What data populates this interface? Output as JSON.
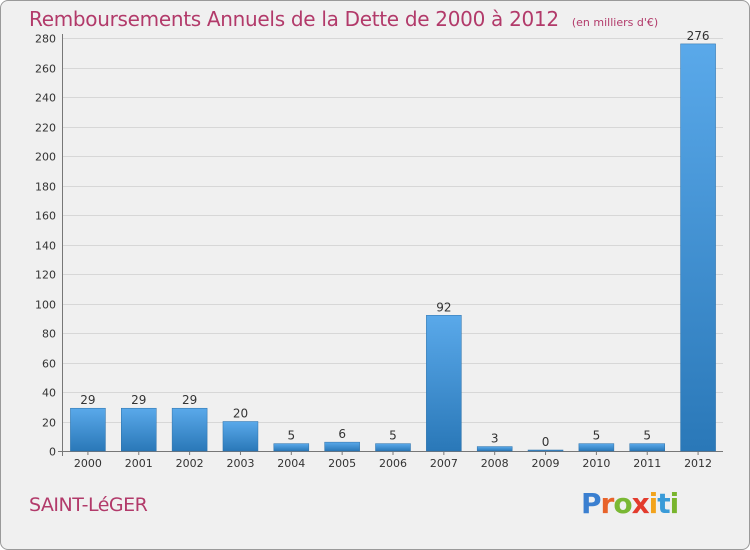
{
  "header": {
    "title": "Remboursements Annuels de la Dette de 2000 à 2012",
    "subtitle": "(en milliers d'€)"
  },
  "footer": {
    "commune": "SAINT-LéGER",
    "logo_letters": [
      "P",
      "r",
      "o",
      "x",
      "i",
      "t",
      "i"
    ],
    "logo_colors": [
      "#3a7fd0",
      "#e8632a",
      "#7ab834",
      "#e33b2d",
      "#f2a31c",
      "#3a9bd8",
      "#79b52d"
    ]
  },
  "colors": {
    "bar_top": "#5aa9ea",
    "bar_bottom": "#2a78b8",
    "accent": "#b23a6a",
    "grid": "#d7d7d7"
  },
  "chart_data": {
    "type": "bar",
    "categories": [
      "2000",
      "2001",
      "2002",
      "2003",
      "2004",
      "2005",
      "2006",
      "2007",
      "2008",
      "2009",
      "2010",
      "2011",
      "2012"
    ],
    "values": [
      29,
      29,
      29,
      20,
      5,
      6,
      5,
      92,
      3,
      0,
      5,
      5,
      276
    ],
    "yticks": [
      0,
      20,
      40,
      60,
      80,
      100,
      120,
      140,
      160,
      180,
      200,
      220,
      240,
      260,
      280
    ],
    "ylim": [
      0,
      280
    ],
    "grid": true,
    "legend": "none",
    "title": "Remboursements Annuels de la Dette de 2000 à 2012",
    "xlabel": "",
    "ylabel": ""
  }
}
